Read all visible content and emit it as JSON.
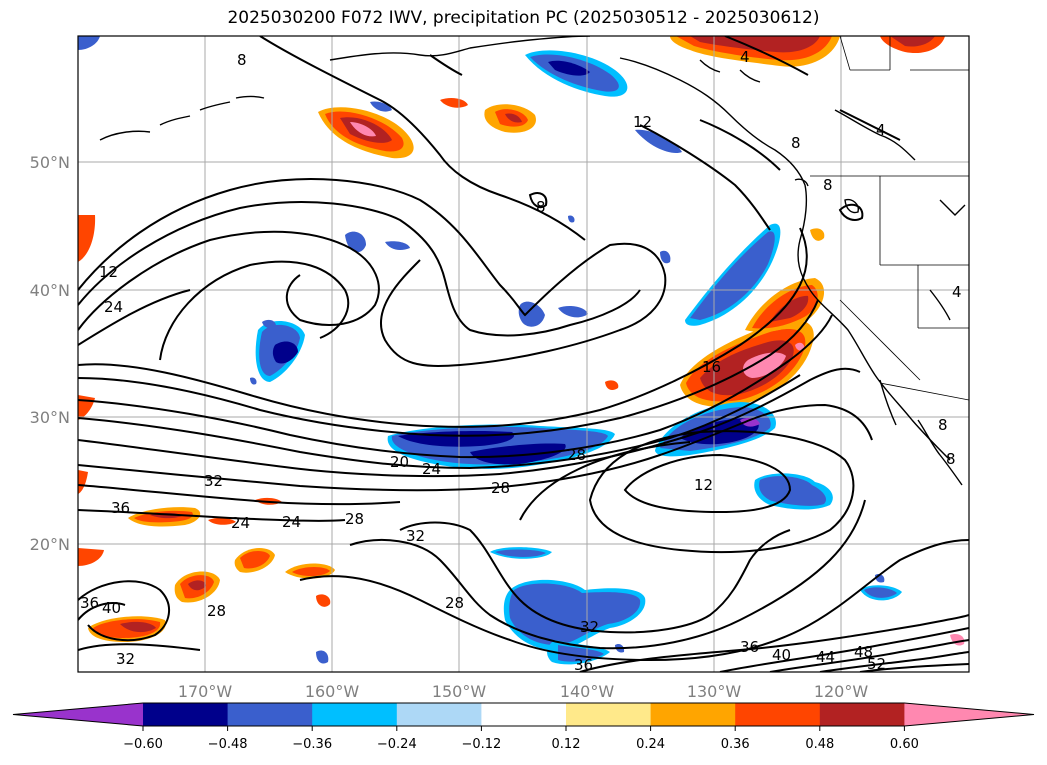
{
  "title": "2025030200 F072 IWV, precipitation PC (2025030512 - 2025030612)",
  "latitude_labels": [
    "50°N",
    "40°N",
    "30°N",
    "20°N"
  ],
  "longitude_labels": [
    "170°W",
    "160°W",
    "150°W",
    "140°W",
    "130°W",
    "120°W"
  ],
  "colorbar": {
    "ticks": [
      "−0.60",
      "−0.48",
      "−0.36",
      "−0.24",
      "−0.12",
      "0.12",
      "0.24",
      "0.36",
      "0.48",
      "0.60"
    ],
    "colors": [
      "#9933cc",
      "#00008b",
      "#3a5fcd",
      "#00bfff",
      "#add8f6",
      "#ffffff",
      "#ffe98a",
      "#ffa500",
      "#ff4500",
      "#b22222",
      "#ff88b0"
    ]
  },
  "contour_labels": [
    "8",
    "4",
    "12",
    "8",
    "4",
    "8",
    "8",
    "12",
    "24",
    "4",
    "16",
    "20",
    "24",
    "28",
    "28",
    "12",
    "32",
    "36",
    "24",
    "24",
    "28",
    "32",
    "28",
    "36",
    "40",
    "28",
    "32",
    "32",
    "36",
    "36",
    "40",
    "44",
    "48",
    "52",
    "8",
    "8"
  ]
}
